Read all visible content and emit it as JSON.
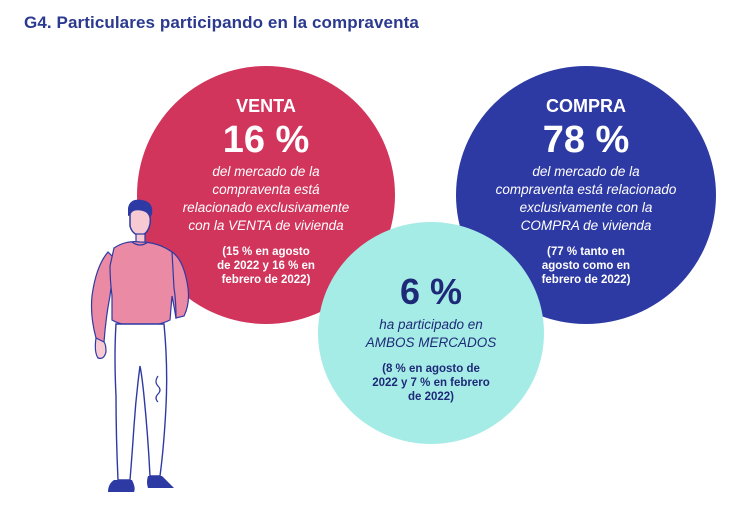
{
  "title": "G4. Particulares participando en la compraventa",
  "venta": {
    "label": "VENTA",
    "percent": "16 %",
    "desc_lines": [
      "del mercado de la",
      "compraventa está",
      "relacionado exclusivamente",
      "con la VENTA de vivienda"
    ],
    "note_lines": [
      "(15 % en agosto",
      "de 2022 y 16 % en",
      "febrero de 2022)"
    ]
  },
  "compra": {
    "label": "COMPRA",
    "percent": "78 %",
    "desc_lines": [
      "del mercado de la",
      "compraventa está relacionado",
      "exclusivamente con la",
      "COMPRA de vivienda"
    ],
    "note_lines": [
      "(77 % tanto en",
      "agosto como en",
      "febrero de 2022)"
    ]
  },
  "ambos": {
    "percent": "6 %",
    "desc_lines": [
      "ha participado en",
      "AMBOS MERCADOS"
    ],
    "note_lines": [
      "(8 % en agosto de",
      "2022 y 7 % en febrero",
      "de 2022)"
    ]
  },
  "colors": {
    "venta": "#d1355c",
    "compra": "#2e3aa3",
    "ambos": "#a6ece6",
    "title": "#2b3a8f"
  },
  "illustration": "person-standing-illustration"
}
